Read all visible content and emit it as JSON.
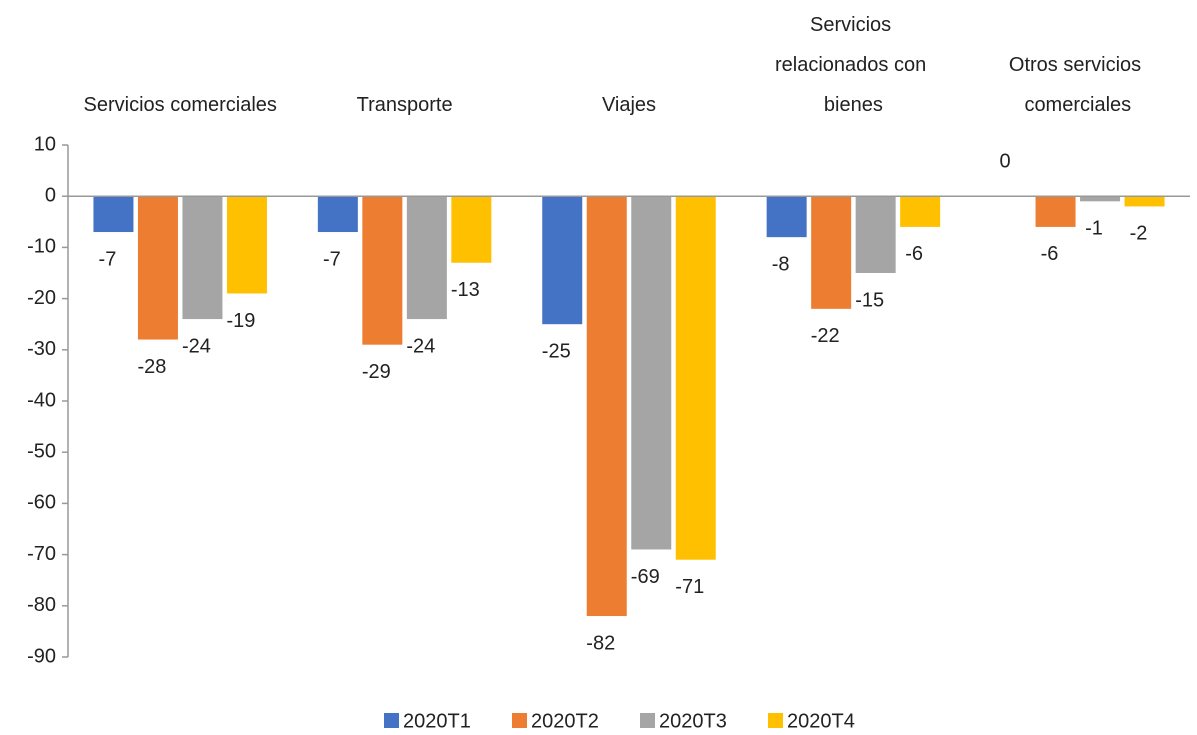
{
  "chart_data": {
    "type": "bar",
    "categories": [
      "Servicios comerciales",
      "Transporte",
      "Viajes",
      "Servicios\nrelacionados con\nbienes",
      "Otros servicios\ncomerciales"
    ],
    "series": [
      {
        "name": "2020T1",
        "color": "#4472c4",
        "values": [
          -7,
          -7,
          -25,
          -8,
          0
        ]
      },
      {
        "name": "2020T2",
        "color": "#ed7d31",
        "values": [
          -28,
          -29,
          -82,
          -22,
          -6
        ]
      },
      {
        "name": "2020T3",
        "color": "#a5a5a5",
        "values": [
          -24,
          -24,
          -69,
          -15,
          -1
        ]
      },
      {
        "name": "2020T4",
        "color": "#ffc000",
        "values": [
          -19,
          -13,
          -71,
          -6,
          -2
        ]
      }
    ],
    "ylim": [
      -90,
      10
    ],
    "yticks": [
      -90,
      -80,
      -70,
      -60,
      -50,
      -40,
      -30,
      -20,
      -10,
      0,
      10
    ],
    "legend": "bottom"
  }
}
